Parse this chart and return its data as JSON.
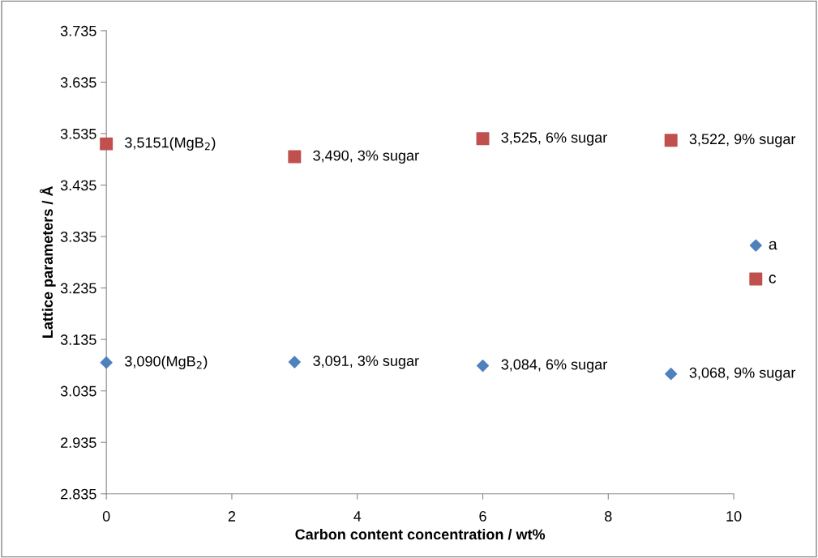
{
  "chart_data": {
    "type": "scatter",
    "xlabel": "Carbon content concentration / wt%",
    "ylabel": "Lattice parameters / Å",
    "x": [
      0,
      3,
      6,
      9
    ],
    "series": [
      {
        "name": "a",
        "color": "#4f81bd",
        "marker": "diamond",
        "values": [
          3.09,
          3.091,
          3.084,
          3.068
        ],
        "value_labels": [
          "3,090(MgB$_{2}$)",
          "3,091, 3% sugar",
          "3,084, 6% sugar",
          "3,068, 9% sugar"
        ]
      },
      {
        "name": "c",
        "color": "#c0504d",
        "marker": "square",
        "values": [
          3.5151,
          3.49,
          3.525,
          3.522
        ],
        "value_labels": [
          "3,5151(MgB$_{2}$)",
          "3,490, 3% sugar",
          "3,525, 6% sugar",
          "3,522, 9% sugar"
        ]
      }
    ],
    "xlim": [
      0,
      10
    ],
    "xticks": [
      0,
      2,
      4,
      6,
      8,
      10
    ],
    "ylim": [
      2.835,
      3.735
    ],
    "yticks": [
      {
        "value": 2.835,
        "label": "2.835"
      },
      {
        "value": 2.935,
        "label": "2.935"
      },
      {
        "value": 3.035,
        "label": "3.035"
      },
      {
        "value": 3.135,
        "label": "3.135"
      },
      {
        "value": 3.235,
        "label": "3.235"
      },
      {
        "value": 3.335,
        "label": "3.335"
      },
      {
        "value": 3.435,
        "label": "3.435"
      },
      {
        "value": 3.535,
        "label": "3.535"
      },
      {
        "value": 3.635,
        "label": "3.635"
      },
      {
        "value": 3.735,
        "label": "3.735"
      }
    ],
    "grid": false,
    "legend": "right"
  }
}
